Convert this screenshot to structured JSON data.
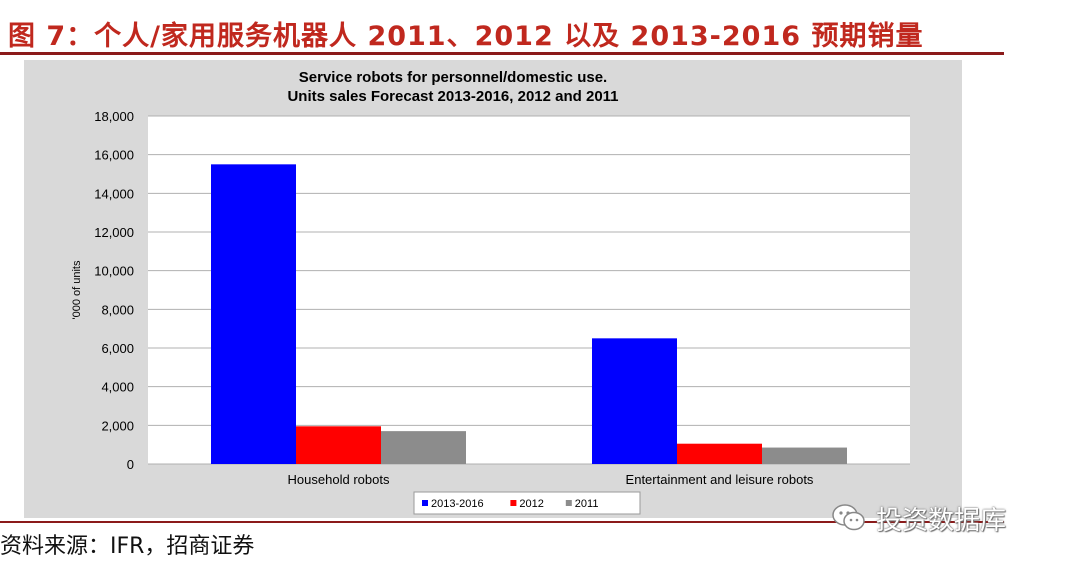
{
  "figure": {
    "title": "图 7：个人/家用服务机器人 2011、2012 以及 2013-2016 预期销量",
    "source_note": "资料来源：IFR，招商证券",
    "watermark": "投资数据库",
    "watermark_icon": "wechat-icon"
  },
  "chart_data": {
    "type": "bar",
    "title": "Service robots for personnel/domestic use.\nUnits sales Forecast 2013-2016, 2012 and 2011",
    "xlabel": "",
    "ylabel": "'000 of units",
    "ylim": [
      0,
      18000
    ],
    "yticks": [
      0,
      2000,
      4000,
      6000,
      8000,
      10000,
      12000,
      14000,
      16000,
      18000
    ],
    "ytick_labels": [
      "0",
      "2,000",
      "4,000",
      "6,000",
      "8,000",
      "10,000",
      "12,000",
      "14,000",
      "16,000",
      "18,000"
    ],
    "grid": true,
    "legend_position": "bottom",
    "categories": [
      "Household robots",
      "Entertainment and leisure robots"
    ],
    "series": [
      {
        "name": "2013-2016",
        "color": "#0000ff",
        "values": [
          15500,
          6500
        ]
      },
      {
        "name": "2012",
        "color": "#ff0000",
        "values": [
          1950,
          1050
        ]
      },
      {
        "name": "2011",
        "color": "#8c8c8c",
        "values": [
          1700,
          850
        ]
      }
    ]
  }
}
